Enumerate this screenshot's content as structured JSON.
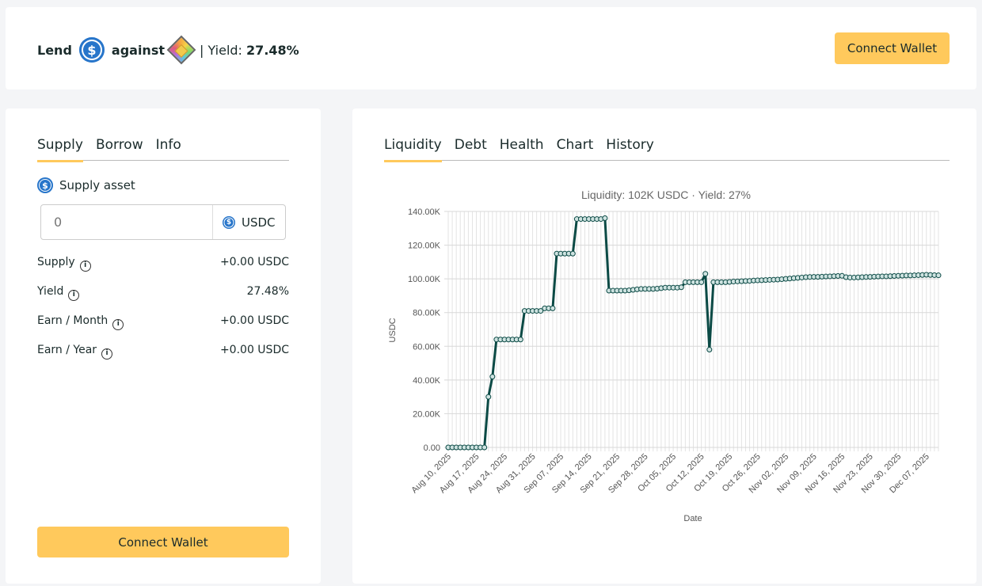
{
  "header": {
    "lend": "Lend",
    "lend_asset_icon": "usdc-coin-icon",
    "against": "against",
    "collateral_icon": "gem-token-icon",
    "yield_label": "| Yield:",
    "yield_value": "27.48%",
    "connect": "Connect Wallet"
  },
  "left": {
    "tabs": [
      {
        "label": "Supply",
        "active": true
      },
      {
        "label": "Borrow"
      },
      {
        "label": "Info"
      }
    ],
    "asset_label": "Supply asset",
    "input_placeholder": "0",
    "unit": "USDC",
    "rows": [
      {
        "label": "Supply",
        "value": "+0.00 USDC"
      },
      {
        "label": "Yield",
        "value": "27.48%"
      },
      {
        "label": "Earn / Month",
        "value": "+0.00 USDC"
      },
      {
        "label": "Earn / Year",
        "value": "+0.00 USDC"
      }
    ],
    "connect": "Connect Wallet"
  },
  "right": {
    "tabs": [
      {
        "label": "Liquidity",
        "active": true
      },
      {
        "label": "Debt"
      },
      {
        "label": "Health"
      },
      {
        "label": "Chart"
      },
      {
        "label": "History"
      }
    ]
  },
  "colors": {
    "accent": "#ffc95c",
    "line": "#0b4a45",
    "usdc": "#2775ca"
  },
  "chart_data": {
    "type": "line",
    "title": "Liquidity: 102K USDC · Yield: 27%",
    "xlabel": "Date",
    "ylabel": "USDC",
    "ylim": [
      0,
      140000
    ],
    "yticks": [
      "0.00",
      "20.00K",
      "40.00K",
      "60.00K",
      "80.00K",
      "100.00K",
      "120.00K",
      "140.00K"
    ],
    "xticks": [
      "Aug 10, 2025",
      "Aug 17, 2025",
      "Aug 24, 2025",
      "Aug 31, 2025",
      "Sep 07, 2025",
      "Sep 14, 2025",
      "Sep 21, 2025",
      "Sep 28, 2025",
      "Oct 05, 2025",
      "Oct 12, 2025",
      "Oct 19, 2025",
      "Oct 26, 2025",
      "Nov 02, 2025",
      "Nov 09, 2025",
      "Nov 16, 2025",
      "Nov 23, 2025",
      "Nov 30, 2025",
      "Dec 07, 2025"
    ],
    "grid": true,
    "x": [
      "2025-08-10",
      "2025-08-11",
      "2025-08-12",
      "2025-08-13",
      "2025-08-14",
      "2025-08-15",
      "2025-08-16",
      "2025-08-17",
      "2025-08-18",
      "2025-08-19",
      "2025-08-20",
      "2025-08-21",
      "2025-08-22",
      "2025-08-23",
      "2025-08-24",
      "2025-08-25",
      "2025-08-26",
      "2025-08-27",
      "2025-08-28",
      "2025-08-29",
      "2025-08-30",
      "2025-08-31",
      "2025-09-01",
      "2025-09-02",
      "2025-09-03",
      "2025-09-04",
      "2025-09-05",
      "2025-09-06",
      "2025-09-07",
      "2025-09-08",
      "2025-09-09",
      "2025-09-10",
      "2025-09-11",
      "2025-09-12",
      "2025-09-13",
      "2025-09-14",
      "2025-09-15",
      "2025-09-16",
      "2025-09-17",
      "2025-09-18",
      "2025-09-19",
      "2025-09-20",
      "2025-09-21",
      "2025-09-22",
      "2025-09-23",
      "2025-09-24",
      "2025-09-25",
      "2025-09-26",
      "2025-09-27",
      "2025-09-28",
      "2025-09-29",
      "2025-09-30",
      "2025-10-01",
      "2025-10-02",
      "2025-10-03",
      "2025-10-04",
      "2025-10-05",
      "2025-10-06",
      "2025-10-07",
      "2025-10-08",
      "2025-10-09",
      "2025-10-10",
      "2025-10-11",
      "2025-10-12",
      "2025-10-13",
      "2025-10-14",
      "2025-10-15",
      "2025-10-16",
      "2025-10-17",
      "2025-10-18",
      "2025-10-19",
      "2025-10-20",
      "2025-10-21",
      "2025-10-22",
      "2025-10-23",
      "2025-10-24",
      "2025-10-25",
      "2025-10-26",
      "2025-10-27",
      "2025-10-28",
      "2025-10-29",
      "2025-10-30",
      "2025-10-31",
      "2025-11-01",
      "2025-11-02",
      "2025-11-03",
      "2025-11-04",
      "2025-11-05",
      "2025-11-06",
      "2025-11-07",
      "2025-11-08",
      "2025-11-09",
      "2025-11-10",
      "2025-11-11",
      "2025-11-12",
      "2025-11-13",
      "2025-11-14",
      "2025-11-15",
      "2025-11-16",
      "2025-11-17",
      "2025-11-18",
      "2025-11-19",
      "2025-11-20",
      "2025-11-21",
      "2025-11-22",
      "2025-11-23",
      "2025-11-24",
      "2025-11-25",
      "2025-11-26",
      "2025-11-27",
      "2025-11-28",
      "2025-11-29",
      "2025-11-30",
      "2025-12-01",
      "2025-12-02",
      "2025-12-03",
      "2025-12-04",
      "2025-12-05",
      "2025-12-06",
      "2025-12-07",
      "2025-12-08",
      "2025-12-09",
      "2025-12-10"
    ],
    "y": [
      0,
      0,
      0,
      0,
      0,
      0,
      0,
      0,
      0,
      0,
      30000,
      42000,
      64000,
      64000,
      64000,
      64000,
      64000,
      64000,
      64000,
      81000,
      81000,
      81000,
      81000,
      81000,
      82500,
      82500,
      82500,
      115000,
      115000,
      115000,
      115000,
      115000,
      135500,
      135500,
      135500,
      135500,
      135500,
      135500,
      135500,
      136000,
      93000,
      93000,
      93000,
      93000,
      93000,
      93200,
      93500,
      93800,
      94000,
      94000,
      94000,
      94000,
      94200,
      94500,
      94800,
      94800,
      94800,
      94800,
      95000,
      98000,
      98000,
      98000,
      98000,
      98000,
      103000,
      58000,
      98000,
      98000,
      98000,
      98000,
      98200,
      98400,
      98500,
      98600,
      98700,
      98800,
      99000,
      99100,
      99200,
      99300,
      99400,
      99500,
      99600,
      99800,
      100000,
      100200,
      100400,
      100600,
      100800,
      101000,
      101100,
      101200,
      101200,
      101300,
      101400,
      101500,
      101600,
      101700,
      101800,
      101000,
      100800,
      100800,
      100900,
      101000,
      101100,
      101200,
      101300,
      101400,
      101500,
      101500,
      101600,
      101700,
      101800,
      101900,
      102000,
      102000,
      102100,
      102200,
      102300,
      102400,
      102300,
      102200,
      102100
    ]
  }
}
